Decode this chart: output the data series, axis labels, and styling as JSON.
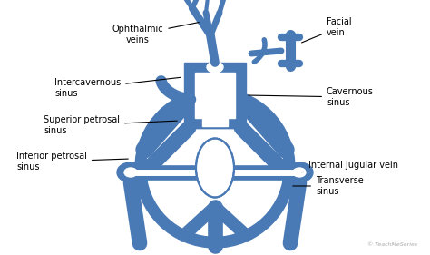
{
  "bg_color": "#ffffff",
  "sinus_color": "#4a7ab5",
  "line_color": "#000000",
  "white": "#ffffff",
  "labels": {
    "ophthalmic_veins": "Ophthalmic\nveins",
    "facial_vein": "Facial\nvein",
    "intercavernous_sinus": "Intercavernous\nsinus",
    "cavernous_sinus": "Cavernous\nsinus",
    "superior_petrosal_sinus": "Superior petrosal\nsinus",
    "inferior_petrosal_sinus": "Inferior petrosal\nsinus",
    "internal_jugular_vein": "Internal jugular vein",
    "transverse_sinus": "Transverse\nsinus"
  },
  "watermark": "© TeachMeSeries",
  "figsize": [
    4.74,
    2.81
  ],
  "dpi": 100
}
